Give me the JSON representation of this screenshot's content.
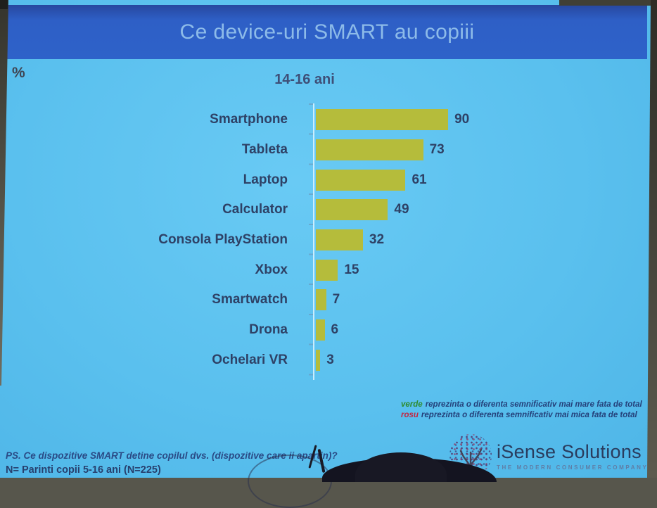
{
  "slide": {
    "title": "Ce device-uri SMART au copiii",
    "percent_symbol": "%",
    "subtitle": "14-16 ani"
  },
  "chart_data": {
    "type": "bar",
    "orientation": "horizontal",
    "title": "Ce device-uri SMART au copiii",
    "group_label": "14-16 ani",
    "unit": "%",
    "categories": [
      "Smartphone",
      "Tableta",
      "Laptop",
      "Calculator",
      "Consola PlayStation",
      "Xbox",
      "Smartwatch",
      "Drona",
      "Ochelari VR"
    ],
    "values": [
      90,
      73,
      61,
      49,
      32,
      15,
      7,
      6,
      3
    ],
    "xlim": [
      0,
      100
    ],
    "grid": false,
    "data_labels": true,
    "bar_color": "#b5bc3b",
    "label_color": "#2e4166",
    "background_color": "#5ac0ee",
    "header_color": "#2e62c9"
  },
  "legend_note": {
    "line1_keyword": "verde",
    "line1_text": "reprezinta o diferenta semnificativ mai mare fata de total",
    "line1_color": "#2e8b2e",
    "line2_keyword": "rosu",
    "line2_text": "reprezinta o diferenta semnificativ mai mica fata de total",
    "line2_color": "#c22743"
  },
  "footer": {
    "question": "PS. Ce dispozitive SMART detine copilul dvs. (dispozitive care ii apartin)?",
    "sample": "N= Parinti copii 5-16 ani (N=225)"
  },
  "logo": {
    "name": "iSense Solutions",
    "tagline": "THE MODERN CONSUMER COMPANY"
  }
}
